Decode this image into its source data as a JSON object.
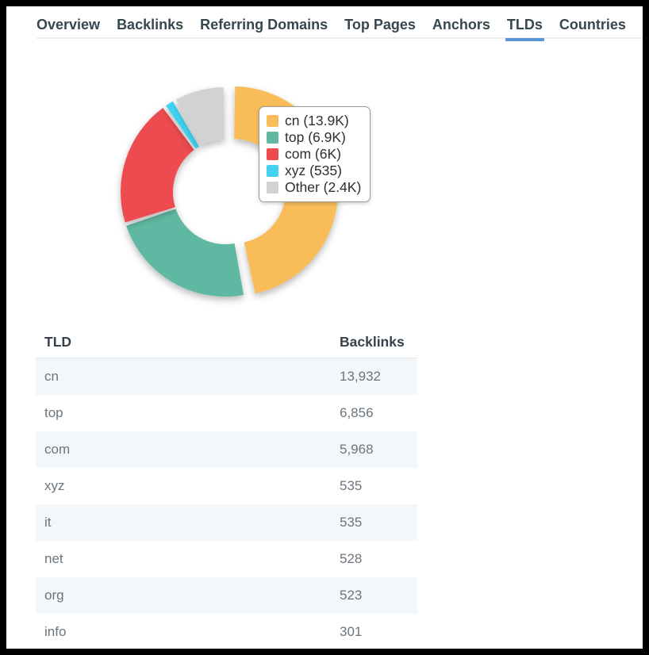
{
  "tabs": {
    "items": [
      {
        "label": "Overview"
      },
      {
        "label": "Backlinks"
      },
      {
        "label": "Referring Domains"
      },
      {
        "label": "Top Pages"
      },
      {
        "label": "Anchors"
      },
      {
        "label": "TLDs"
      },
      {
        "label": "Countries"
      }
    ],
    "active": "TLDs"
  },
  "chart_data": {
    "type": "pie",
    "subtype": "donut",
    "direction": "clockwise",
    "start_angle_deg": 0,
    "legend_position": "right-overlay",
    "slices": [
      {
        "label": "cn",
        "value": 13932,
        "display": "cn (13.9K)",
        "color": "#F8BD59",
        "emphasized": true
      },
      {
        "label": "top",
        "value": 6856,
        "display": "top (6.9K)",
        "color": "#5FB9A2",
        "emphasized": false
      },
      {
        "label": "com",
        "value": 5968,
        "display": "com (6K)",
        "color": "#ED4C4F",
        "emphasized": false
      },
      {
        "label": "xyz",
        "value": 535,
        "display": "xyz (535)",
        "color": "#41D2F2",
        "emphasized": false
      },
      {
        "label": "Other",
        "value": 2400,
        "display": "Other (2.4K)",
        "color": "#D2D2D2",
        "emphasized": false
      }
    ]
  },
  "table": {
    "headers": [
      "TLD",
      "Backlinks"
    ],
    "rows": [
      {
        "tld": "cn",
        "backlinks": "13,932"
      },
      {
        "tld": "top",
        "backlinks": "6,856"
      },
      {
        "tld": "com",
        "backlinks": "5,968"
      },
      {
        "tld": "xyz",
        "backlinks": "535"
      },
      {
        "tld": "it",
        "backlinks": "535"
      },
      {
        "tld": "net",
        "backlinks": "528"
      },
      {
        "tld": "org",
        "backlinks": "523"
      },
      {
        "tld": "info",
        "backlinks": "301"
      }
    ]
  },
  "theme": {
    "active_tab_underline": "#5B93D8",
    "tab_text": "#37474F",
    "alt_row_bg": "#F4F7F9",
    "header_text": "#37424B",
    "cell_text": "#6C757D",
    "legend_border": "#9D9D9D"
  }
}
